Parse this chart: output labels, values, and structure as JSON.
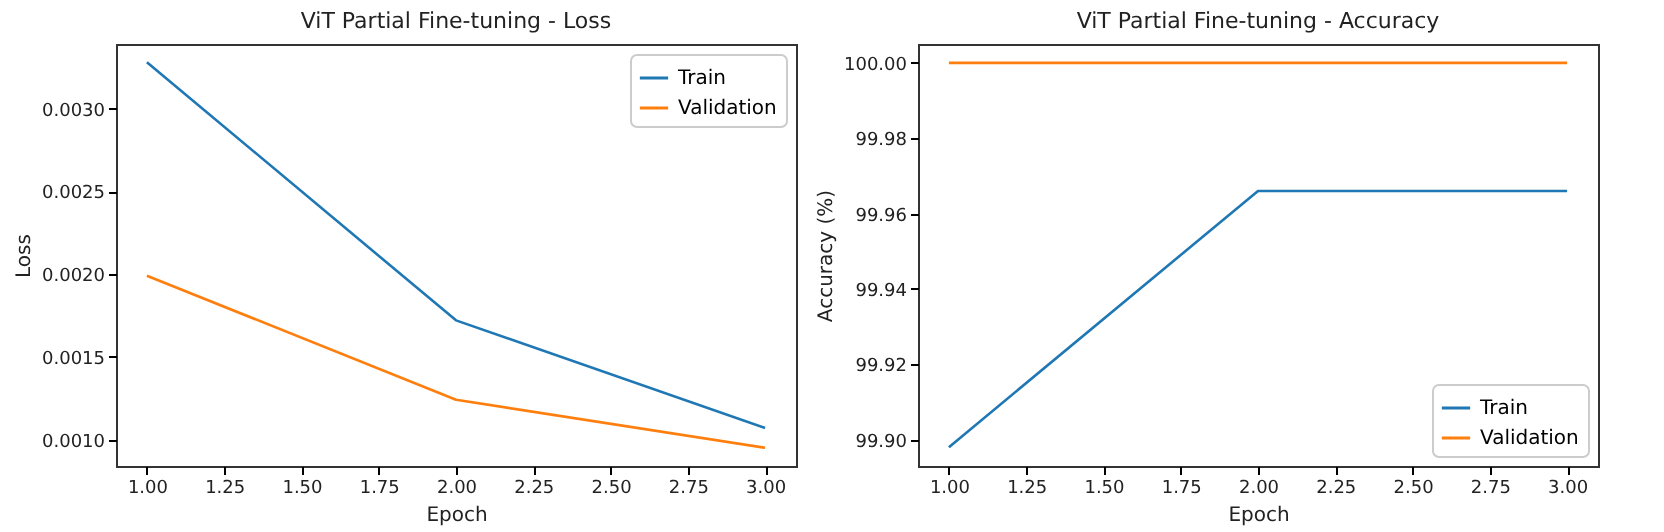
{
  "chart_data": [
    {
      "type": "line",
      "title": "ViT Partial Fine-tuning - Loss",
      "xlabel": "Epoch",
      "ylabel": "Loss",
      "x": [
        1,
        2,
        3
      ],
      "series": [
        {
          "name": "Train",
          "color": "#1f77b4",
          "values": [
            0.00328,
            0.00172,
            0.00107
          ]
        },
        {
          "name": "Validation",
          "color": "#ff7f0e",
          "values": [
            0.00199,
            0.00124,
            0.00095
          ]
        }
      ],
      "xlim": [
        0.9,
        3.1
      ],
      "xticks": [
        {
          "value": 1,
          "label": "1.00"
        },
        {
          "value": 1.25,
          "label": "1.25"
        },
        {
          "value": 1.5,
          "label": "1.50"
        },
        {
          "value": 1.75,
          "label": "1.75"
        },
        {
          "value": 2,
          "label": "2.00"
        },
        {
          "value": 2.25,
          "label": "2.25"
        },
        {
          "value": 2.5,
          "label": "2.50"
        },
        {
          "value": 2.75,
          "label": "2.75"
        },
        {
          "value": 3,
          "label": "3.00"
        }
      ],
      "ylim": [
        0.00084,
        0.00339
      ],
      "yticks": [
        {
          "value": 0.001,
          "label": "0.0010"
        },
        {
          "value": 0.0015,
          "label": "0.0015"
        },
        {
          "value": 0.002,
          "label": "0.0020"
        },
        {
          "value": 0.0025,
          "label": "0.0025"
        },
        {
          "value": 0.003,
          "label": "0.0030"
        }
      ],
      "grid": false,
      "legend": "top right",
      "line_style": "solid"
    },
    {
      "type": "line",
      "title": "ViT Partial Fine-tuning - Accuracy",
      "xlabel": "Epoch",
      "ylabel": "Accuracy (%)",
      "x": [
        1,
        2,
        3
      ],
      "series": [
        {
          "name": "Train",
          "color": "#1f77b4",
          "values": [
            99.898,
            99.966,
            99.966
          ]
        },
        {
          "name": "Validation",
          "color": "#ff7f0e",
          "values": [
            100,
            100,
            100
          ]
        }
      ],
      "xlim": [
        0.9,
        3.1
      ],
      "xticks": [
        {
          "value": 1,
          "label": "1.00"
        },
        {
          "value": 1.25,
          "label": "1.25"
        },
        {
          "value": 1.5,
          "label": "1.50"
        },
        {
          "value": 1.75,
          "label": "1.75"
        },
        {
          "value": 2,
          "label": "2.00"
        },
        {
          "value": 2.25,
          "label": "2.25"
        },
        {
          "value": 2.5,
          "label": "2.50"
        },
        {
          "value": 2.75,
          "label": "2.75"
        },
        {
          "value": 3,
          "label": "3.00"
        }
      ],
      "ylim": [
        99.893,
        100.005
      ],
      "yticks": [
        {
          "value": 99.9,
          "label": "99.90"
        },
        {
          "value": 99.92,
          "label": "99.92"
        },
        {
          "value": 99.94,
          "label": "99.94"
        },
        {
          "value": 99.96,
          "label": "99.96"
        },
        {
          "value": 99.98,
          "label": "99.98"
        },
        {
          "value": 100,
          "label": "100.00"
        }
      ],
      "grid": false,
      "legend": "bottom right",
      "line_style": "solid"
    }
  ]
}
